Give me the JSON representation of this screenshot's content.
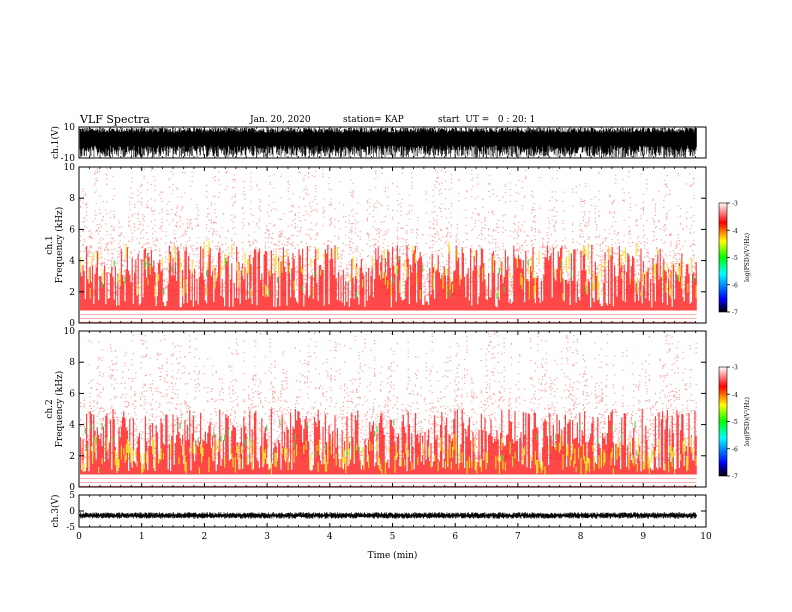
{
  "header": {
    "title": "VLF Spectra",
    "date": "Jan. 20, 2020",
    "station": "station= KAP",
    "start_ut": "start  UT =   0 : 20: 1"
  },
  "chart_data": [
    {
      "type": "line",
      "name": "ch1-waveform",
      "ylabel": "ch.1(V)",
      "ylim": [
        -10,
        10
      ],
      "yticks": [
        10,
        -10
      ],
      "xlim": [
        0,
        10
      ],
      "data_extent_min": 9.85
    },
    {
      "type": "heatmap",
      "name": "ch1-spectrogram",
      "ylabel": "ch.1\nFrequency (kHz)",
      "ylabel_lines": [
        "ch.1",
        "Frequency (kHz)"
      ],
      "ylim": [
        0,
        10
      ],
      "yticks": [
        0,
        2,
        4,
        6,
        8,
        10
      ],
      "xlim": [
        0,
        10
      ],
      "data_extent_min": 9.85,
      "colorbar": {
        "range": [
          -7,
          -3
        ],
        "ticks": [
          -3,
          -4,
          -5,
          -6,
          -7
        ],
        "label": "log(PSD)(V²/Hz)",
        "colors": [
          "#000000",
          "#0000ff",
          "#00ffff",
          "#00ff00",
          "#ffff00",
          "#ff0000",
          "#ffffff"
        ]
      }
    },
    {
      "type": "heatmap",
      "name": "ch2-spectrogram",
      "ylabel": "ch.2\nFrequency (kHz)",
      "ylabel_lines": [
        "ch.2",
        "Frequency (kHz)"
      ],
      "ylim": [
        0,
        10
      ],
      "yticks": [
        0,
        2,
        4,
        6,
        8,
        10
      ],
      "xlim": [
        0,
        10
      ],
      "data_extent_min": 9.85,
      "colorbar": {
        "range": [
          -7,
          -3
        ],
        "ticks": [
          -3,
          -4,
          -5,
          -6,
          -7
        ],
        "label": "log(PSD)(V²/Hz)",
        "colors": [
          "#000000",
          "#0000ff",
          "#00ffff",
          "#00ff00",
          "#ffff00",
          "#ff0000",
          "#ffffff"
        ]
      }
    },
    {
      "type": "line",
      "name": "ch3-waveform",
      "ylabel": "ch.3(V)",
      "ylim": [
        -5,
        5
      ],
      "yticks": [
        5,
        0,
        -5
      ],
      "xlim": [
        0,
        10
      ],
      "data_extent_min": 9.85,
      "xlabel": "Time (min)",
      "xticks": [
        0,
        1,
        2,
        3,
        4,
        5,
        6,
        7,
        8,
        9,
        10
      ]
    }
  ]
}
